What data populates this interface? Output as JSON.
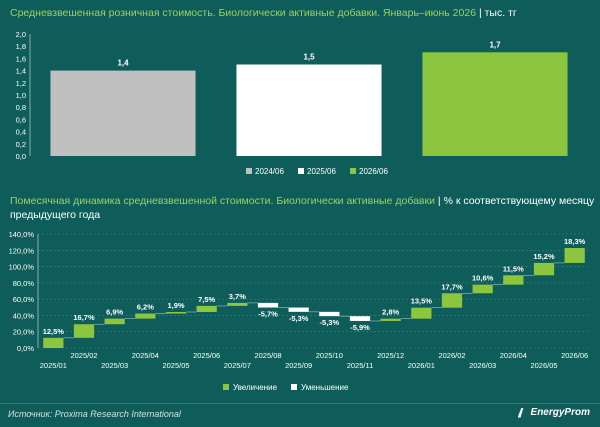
{
  "chart1": {
    "title_main": "Средневзвешенная розничная стоимость. Биологически активные добавки. Январь–июнь 2026",
    "title_unit": "тыс. тг",
    "chart_data": {
      "type": "bar",
      "categories": [
        "2024/06",
        "2025/06",
        "2026/06"
      ],
      "values": [
        1.4,
        1.5,
        1.7
      ],
      "value_labels": [
        "1,4",
        "1,5",
        "1,7"
      ],
      "colors": [
        "#c0c0c0",
        "#ffffff",
        "#8cc63f"
      ],
      "ylim": [
        0,
        2.0
      ],
      "yticks": [
        "0,0",
        "0,2",
        "0,4",
        "0,6",
        "0,8",
        "1,0",
        "1,2",
        "1,4",
        "1,6",
        "1,8",
        "2,0"
      ],
      "legend_position": "bottom"
    }
  },
  "chart2": {
    "title_main": "Помесячная динамика средневзвешенной стоимости. Биологически активные добавки",
    "title_unit": "% к соответствующему месяцу предыдущего года",
    "chart_data": {
      "type": "waterfall",
      "categories": [
        "2025/01",
        "2025/02",
        "2025/03",
        "2025/04",
        "2025/05",
        "2025/06",
        "2025/07",
        "2025/08",
        "2025/09",
        "2025/10",
        "2025/11",
        "2025/12",
        "2026/01",
        "2026/02",
        "2026/03",
        "2026/04",
        "2026/05",
        "2026/06"
      ],
      "values": [
        12.5,
        16.7,
        6.9,
        6.2,
        1.9,
        7.5,
        3.7,
        -5.7,
        -5.3,
        -5.3,
        -5.9,
        2.8,
        13.5,
        17.7,
        10.6,
        11.5,
        15.2,
        18.3
      ],
      "value_labels": [
        "12,5%",
        "16,7%",
        "6,9%",
        "6,2%",
        "1,9%",
        "7,5%",
        "3,7%",
        "-5,7%",
        "-5,3%",
        "-5,3%",
        "-5,9%",
        "2,8%",
        "13,5%",
        "17,7%",
        "10,6%",
        "11,5%",
        "15,2%",
        "18,3%"
      ],
      "increase_color": "#8cc63f",
      "decrease_color": "#ffffff",
      "ylim": [
        0,
        140
      ],
      "yticks": [
        "0,0%",
        "20,0%",
        "40,0%",
        "60,0%",
        "80,0%",
        "100,0%",
        "120,0%",
        "140,0%"
      ],
      "legend": [
        "Увеличение",
        "Уменьшение"
      ],
      "legend_position": "bottom"
    }
  },
  "footer": {
    "source": "Источник: Proxima Research International",
    "logo": "EnergyProm"
  }
}
